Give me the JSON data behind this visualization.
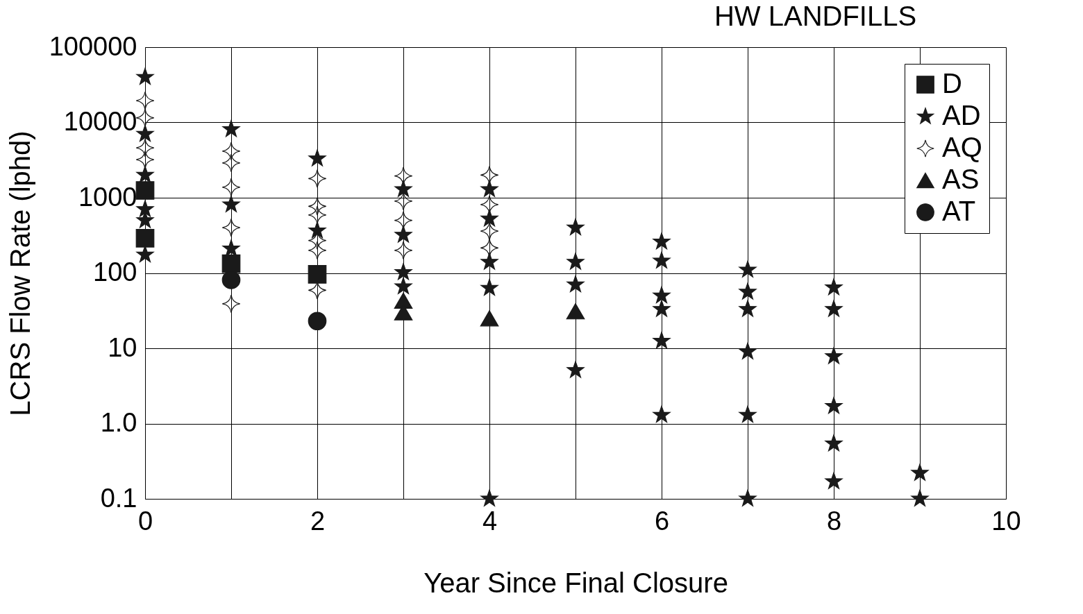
{
  "chart_data": {
    "type": "scatter",
    "title": "HW LANDFILLS",
    "xlabel": "Year Since Final Closure",
    "ylabel": "LCRS Flow Rate  (lphd)",
    "log": "y",
    "grid": true,
    "legend": "top right",
    "xlim": [
      0,
      10
    ],
    "xticks": [
      0,
      {
        "value": 1,
        "label": null
      },
      2,
      {
        "value": 3,
        "label": null
      },
      4,
      {
        "value": 5,
        "label": null
      },
      6,
      {
        "value": 7,
        "label": null
      },
      8,
      {
        "value": 9,
        "label": null
      },
      10
    ],
    "ylim": [
      0.1,
      100000
    ],
    "yticks": [
      0.1,
      {
        "value": 1,
        "label": "1.0"
      },
      10,
      100,
      1000,
      10000,
      100000
    ],
    "series": [
      {
        "name": "D",
        "color": "#1a1a1a",
        "marker": "square",
        "x": [
          0,
          0,
          1,
          2
        ],
        "values": [
          1250,
          290,
          133,
          96
        ]
      },
      {
        "name": "AD",
        "color": "#1a1a1a",
        "marker": "star",
        "x": [
          0,
          0,
          0,
          0,
          0,
          0,
          1,
          1,
          1,
          2,
          2,
          3,
          3,
          3,
          3,
          4,
          4,
          4,
          4,
          4,
          5,
          5,
          5,
          5,
          6,
          6,
          6,
          6,
          6,
          6,
          7,
          7,
          7,
          7,
          7,
          7,
          8,
          8,
          8,
          8,
          8,
          8,
          9,
          9
        ],
        "values": [
          40000,
          7000,
          2000,
          700,
          500,
          175,
          8100,
          810,
          210,
          3300,
          365,
          1290,
          320,
          102,
          66,
          1290,
          525,
          140,
          63,
          0.1,
          400,
          140,
          70,
          5.1,
          260,
          145,
          50,
          33,
          12.5,
          1.3,
          110,
          56,
          33,
          9,
          1.3,
          0.1,
          64,
          33,
          7.8,
          1.7,
          0.54,
          0.17,
          0.22,
          0.1
        ]
      },
      {
        "name": "AQ",
        "color": "#1a1a1a",
        "marker": "diamond",
        "x": [
          0,
          0,
          0,
          0,
          1,
          1,
          1,
          1,
          1,
          2,
          2,
          2,
          2,
          2,
          2,
          3,
          3,
          3,
          3,
          4,
          4,
          4,
          4
        ],
        "values": [
          19500,
          11500,
          4600,
          3200,
          4150,
          2900,
          1380,
          400,
          39,
          1800,
          770,
          590,
          270,
          200,
          59,
          1950,
          900,
          500,
          200,
          2000,
          810,
          360,
          215
        ]
      },
      {
        "name": "AS",
        "color": "#1a1a1a",
        "marker": "triangle",
        "x": [
          3,
          3,
          4,
          5
        ],
        "values": [
          43,
          30,
          25,
          31
        ]
      },
      {
        "name": "AT",
        "color": "#1a1a1a",
        "marker": "circle",
        "x": [
          1,
          2
        ],
        "values": [
          81,
          23
        ]
      }
    ]
  }
}
